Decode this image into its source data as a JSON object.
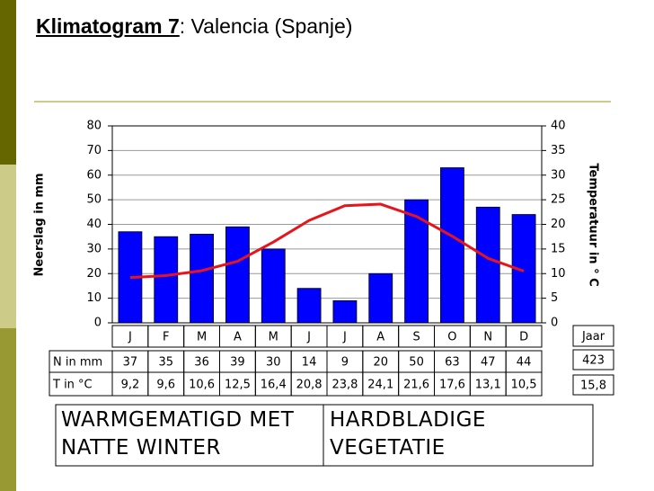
{
  "header": {
    "title": "Klimatogram 7",
    "suffix": ": Valencia (Spanje)"
  },
  "chart_data": {
    "type": "bar-line",
    "ylabel": "Neerslag in mm",
    "y2label": "Temperatuur in ° C",
    "categories": [
      "J",
      "F",
      "M",
      "A",
      "M",
      "J",
      "J",
      "A",
      "S",
      "O",
      "N",
      "D"
    ],
    "series": [
      {
        "name": "N in mm",
        "type": "bar",
        "color": "#0000ff",
        "values": [
          37,
          35,
          36,
          39,
          30,
          14,
          9,
          20,
          50,
          63,
          47,
          44
        ]
      },
      {
        "name": "T in °C",
        "type": "line",
        "axis": "y2",
        "color": "#e8141b",
        "values": [
          9.2,
          9.6,
          10.6,
          12.5,
          16.4,
          20.8,
          23.8,
          24.1,
          21.6,
          17.6,
          13.1,
          10.5
        ],
        "value_labels": [
          "9,2",
          "9,6",
          "10,6",
          "12,5",
          "16,4",
          "20,8",
          "23,8",
          "24,1",
          "21,6",
          "17,6",
          "13,1",
          "10,5"
        ]
      }
    ],
    "ylim": [
      0,
      80
    ],
    "yticks": [
      0,
      10,
      20,
      30,
      40,
      50,
      60,
      70,
      80
    ],
    "y2lim": [
      0,
      40
    ],
    "y2ticks": [
      0,
      5,
      10,
      15,
      20,
      25,
      30,
      35,
      40
    ],
    "grid": true,
    "jaar": {
      "label": "Jaar",
      "precipitation": 423,
      "temperature": 15.8,
      "temperature_label": "15,8"
    }
  },
  "classification": [
    "WARMGEMATIGD MET NATTE WINTER",
    "HARDBLADIGE VEGETATIE"
  ]
}
